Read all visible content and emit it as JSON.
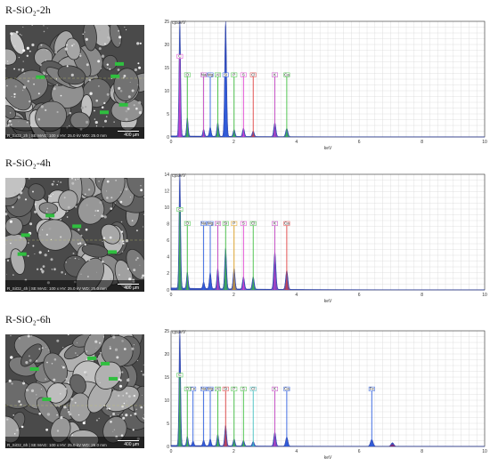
{
  "panels": [
    {
      "title": "R-SiO₂-2h",
      "sem": {
        "info": "R_SiO2_2h  |  SE  MAG: 100 x  HV: 25.0 kV  WD: 25.0 mm",
        "scale": "400 µm"
      },
      "chart_data": {
        "type": "line",
        "ylabel": "cps/eV",
        "xlabel": "keV",
        "xlim": [
          0,
          10
        ],
        "ylim": [
          0,
          25
        ],
        "xticks": [
          0,
          2,
          4,
          6,
          8,
          10
        ],
        "yticks": [
          0,
          5,
          10,
          15,
          20,
          25
        ],
        "grid": true,
        "element_tags": [
          {
            "label": "C",
            "x": 0.28,
            "y": 17,
            "color": "#e040d0"
          },
          {
            "label": "O",
            "x": 0.52,
            "y": 13,
            "color": "#40c040"
          },
          {
            "label": "Na",
            "x": 1.04,
            "y": 13,
            "color": "#c040c0"
          },
          {
            "label": "Mg",
            "x": 1.25,
            "y": 13,
            "color": "#3060e0"
          },
          {
            "label": "Al",
            "x": 1.49,
            "y": 13,
            "color": "#40c040"
          },
          {
            "label": "Si",
            "x": 1.74,
            "y": 13,
            "color": "#3060e0"
          },
          {
            "label": "P",
            "x": 2.01,
            "y": 13,
            "color": "#40c040"
          },
          {
            "label": "S",
            "x": 2.31,
            "y": 13,
            "color": "#e040d0"
          },
          {
            "label": "Cl",
            "x": 2.62,
            "y": 13,
            "color": "#e04040"
          },
          {
            "label": "K",
            "x": 3.31,
            "y": 13,
            "color": "#c040c0"
          },
          {
            "label": "Ca",
            "x": 3.69,
            "y": 13,
            "color": "#40c040"
          }
        ],
        "peaks": [
          {
            "x": 0.28,
            "y": 25
          },
          {
            "x": 0.52,
            "y": 4
          },
          {
            "x": 1.04,
            "y": 1.5
          },
          {
            "x": 1.25,
            "y": 2
          },
          {
            "x": 1.49,
            "y": 3
          },
          {
            "x": 1.74,
            "y": 25
          },
          {
            "x": 2.01,
            "y": 1.5
          },
          {
            "x": 2.31,
            "y": 1.8
          },
          {
            "x": 2.62,
            "y": 1.2
          },
          {
            "x": 3.31,
            "y": 3
          },
          {
            "x": 3.69,
            "y": 1.8
          }
        ]
      }
    },
    {
      "title": "R-SiO₂-4h",
      "sem": {
        "info": "R_SiO2_4h  |  SE  MAG: 100 x  HV: 25.0 kV  WD: 25.0 mm",
        "scale": "400 µm"
      },
      "chart_data": {
        "type": "line",
        "ylabel": "cps/eV",
        "xlabel": "keV",
        "xlim": [
          0,
          10
        ],
        "ylim": [
          0,
          14
        ],
        "xticks": [
          0,
          2,
          4,
          6,
          8,
          10
        ],
        "yticks": [
          0,
          2,
          4,
          6,
          8,
          10,
          12,
          14
        ],
        "grid": true,
        "element_tags": [
          {
            "label": "C",
            "x": 0.28,
            "y": 9.5,
            "color": "#40c040"
          },
          {
            "label": "O",
            "x": 0.52,
            "y": 7.8,
            "color": "#40c040"
          },
          {
            "label": "Na",
            "x": 1.04,
            "y": 7.8,
            "color": "#3060e0"
          },
          {
            "label": "Mg",
            "x": 1.25,
            "y": 7.8,
            "color": "#3060e0"
          },
          {
            "label": "Al",
            "x": 1.49,
            "y": 7.8,
            "color": "#c040c0"
          },
          {
            "label": "Si",
            "x": 1.74,
            "y": 7.8,
            "color": "#40c040"
          },
          {
            "label": "P",
            "x": 2.01,
            "y": 7.8,
            "color": "#e0a020"
          },
          {
            "label": "S",
            "x": 2.31,
            "y": 7.8,
            "color": "#e040d0"
          },
          {
            "label": "Cl",
            "x": 2.62,
            "y": 7.8,
            "color": "#40c040"
          },
          {
            "label": "K",
            "x": 3.31,
            "y": 7.8,
            "color": "#c040c0"
          },
          {
            "label": "Ca",
            "x": 3.69,
            "y": 7.8,
            "color": "#e04040"
          }
        ],
        "peaks": [
          {
            "x": 0.28,
            "y": 14
          },
          {
            "x": 0.52,
            "y": 2
          },
          {
            "x": 1.04,
            "y": 0.8
          },
          {
            "x": 1.25,
            "y": 2
          },
          {
            "x": 1.49,
            "y": 2.5
          },
          {
            "x": 1.74,
            "y": 5
          },
          {
            "x": 2.01,
            "y": 2.5
          },
          {
            "x": 2.31,
            "y": 1.5
          },
          {
            "x": 2.62,
            "y": 1.5
          },
          {
            "x": 3.31,
            "y": 4.5
          },
          {
            "x": 3.69,
            "y": 2.3
          }
        ]
      }
    },
    {
      "title": "R-SiO₂-6h",
      "sem": {
        "info": "R_SiO2_6h  |  SE  MAG: 100 x  HV: 25.0 kV  WD: 25.0 mm",
        "scale": "400 µm"
      },
      "chart_data": {
        "type": "line",
        "ylabel": "cps/eV",
        "xlabel": "keV",
        "xlim": [
          0,
          10
        ],
        "ylim": [
          0,
          25
        ],
        "xticks": [
          0,
          2,
          4,
          6,
          8,
          10
        ],
        "yticks": [
          0,
          5,
          10,
          15,
          20,
          25
        ],
        "grid": true,
        "element_tags": [
          {
            "label": "C",
            "x": 0.28,
            "y": 15,
            "color": "#40c040"
          },
          {
            "label": "Fe",
            "x": 0.7,
            "y": 12,
            "color": "#3060e0"
          },
          {
            "label": "O",
            "x": 0.52,
            "y": 12,
            "color": "#40c040"
          },
          {
            "label": "Na",
            "x": 1.04,
            "y": 12,
            "color": "#3060e0"
          },
          {
            "label": "Mg",
            "x": 1.25,
            "y": 12,
            "color": "#3060e0"
          },
          {
            "label": "Al",
            "x": 1.49,
            "y": 12,
            "color": "#40c040"
          },
          {
            "label": "Si",
            "x": 1.74,
            "y": 12,
            "color": "#e04040"
          },
          {
            "label": "P",
            "x": 2.01,
            "y": 12,
            "color": "#40c040"
          },
          {
            "label": "S",
            "x": 2.31,
            "y": 12,
            "color": "#40c040"
          },
          {
            "label": "Cl",
            "x": 2.62,
            "y": 12,
            "color": "#40c0c0"
          },
          {
            "label": "K",
            "x": 3.31,
            "y": 12,
            "color": "#c040c0"
          },
          {
            "label": "Ca",
            "x": 3.69,
            "y": 12,
            "color": "#3060e0"
          },
          {
            "label": "Fe",
            "x": 6.4,
            "y": 12,
            "color": "#3060e0"
          }
        ],
        "peaks": [
          {
            "x": 0.28,
            "y": 25
          },
          {
            "x": 0.52,
            "y": 2
          },
          {
            "x": 0.7,
            "y": 1
          },
          {
            "x": 1.04,
            "y": 1.2
          },
          {
            "x": 1.25,
            "y": 1.5
          },
          {
            "x": 1.49,
            "y": 2.5
          },
          {
            "x": 1.74,
            "y": 4.5
          },
          {
            "x": 2.01,
            "y": 1.5
          },
          {
            "x": 2.31,
            "y": 1.2
          },
          {
            "x": 2.62,
            "y": 1
          },
          {
            "x": 3.31,
            "y": 3
          },
          {
            "x": 3.69,
            "y": 2
          },
          {
            "x": 6.4,
            "y": 1.5
          },
          {
            "x": 7.06,
            "y": 0.8
          }
        ]
      }
    }
  ],
  "colors": {
    "spectrum_fill_blue": "#1f3fbf",
    "spectrum_fill_red": "#c01040",
    "spectrum_fill_green": "#20a080",
    "grid": "#d8d8d8",
    "axis": "#333333"
  }
}
